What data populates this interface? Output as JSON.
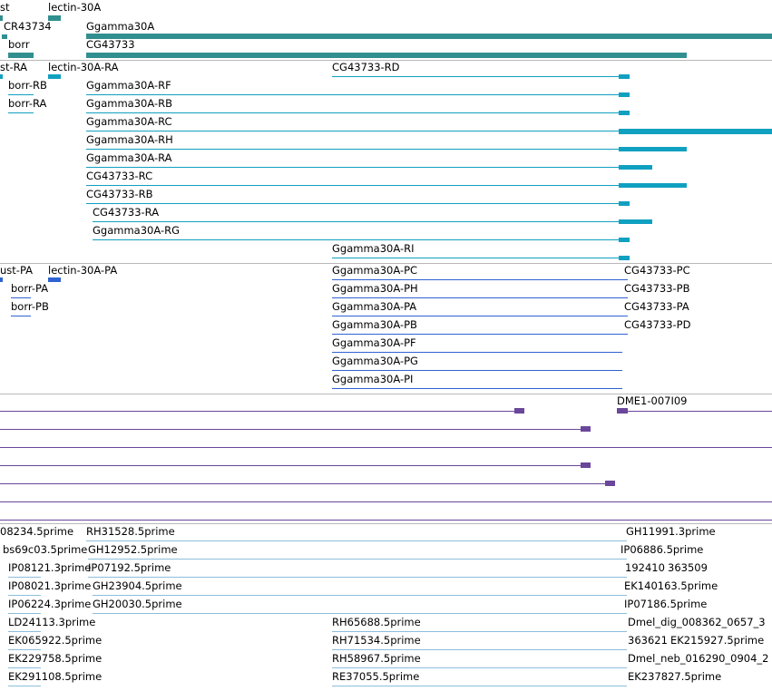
{
  "colors": {
    "gene": "#318F8F",
    "transcript": "#10A0C0",
    "protein": "#2F63D4",
    "alignment": "#6A479A",
    "est": "#8CBEDD",
    "separator": "#b8b8b8"
  },
  "genes": {
    "labels": [
      "st",
      "lectin-30A",
      "CR43734",
      "Ggamma30A",
      "borr",
      "CG43733"
    ]
  },
  "transcripts": {
    "labels": [
      "st-RA",
      "lectin-30A-RA",
      "CG43733-RD",
      "borr-RB",
      "borr-RA",
      "Ggamma30A-RF",
      "Ggamma30A-RB",
      "Ggamma30A-RC",
      "Ggamma30A-RH",
      "Ggamma30A-RA",
      "CG43733-RC",
      "CG43733-RB",
      "CG43733-RA",
      "Ggamma30A-RG",
      "Ggamma30A-RI"
    ]
  },
  "proteins": {
    "labels": [
      "ust-PA",
      "lectin-30A-PA",
      "Ggamma30A-PC",
      "CG43733-PC",
      "borr-PA",
      "Ggamma30A-PH",
      "CG43733-PB",
      "borr-PB",
      "Ggamma30A-PA",
      "CG43733-PA",
      "Ggamma30A-PB",
      "CG43733-PD",
      "Ggamma30A-PF",
      "Ggamma30A-PG",
      "Ggamma30A-PI"
    ]
  },
  "alignments": {
    "labels": [
      "DME1-007I09"
    ]
  },
  "ests": {
    "labels": [
      "08234.5prime",
      "RH31528.5prime",
      "GH11991.3prime",
      "bs69c03.5prime",
      "GH12952.5prime",
      "IP06886.5prime",
      "IP08121.3prime",
      "IP07192.5prime",
      "192410",
      "363509",
      "IP08021.3prime",
      "GH23904.5prime",
      "EK140163.5prime",
      "IP06224.3prime",
      "GH20030.5prime",
      "IP07186.5prime",
      "LD24113.3prime",
      "RH65688.5prime",
      "Dmel_dig_008362_0657_3",
      "EK065922.5prime",
      "RH71534.5prime",
      "363621",
      "EK215927.5prime",
      "EK229758.5prime",
      "RH58967.5prime",
      "Dmel_neb_016290_0904_2",
      "EK291108.5prime",
      "RE37055.5prime",
      "EK237827.5prime"
    ]
  }
}
